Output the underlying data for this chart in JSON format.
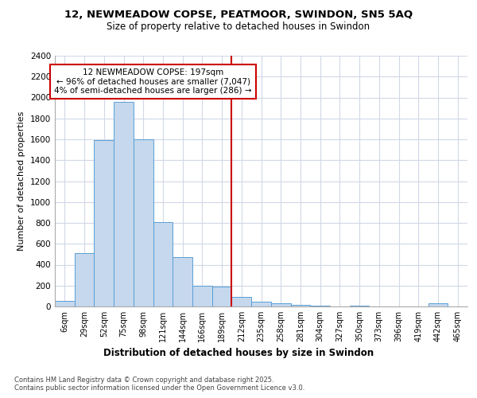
{
  "title1": "12, NEWMEADOW COPSE, PEATMOOR, SWINDON, SN5 5AQ",
  "title2": "Size of property relative to detached houses in Swindon",
  "xlabel": "Distribution of detached houses by size in Swindon",
  "ylabel": "Number of detached properties",
  "bin_labels": [
    "6sqm",
    "29sqm",
    "52sqm",
    "75sqm",
    "98sqm",
    "121sqm",
    "144sqm",
    "166sqm",
    "189sqm",
    "212sqm",
    "235sqm",
    "258sqm",
    "281sqm",
    "304sqm",
    "327sqm",
    "350sqm",
    "373sqm",
    "396sqm",
    "419sqm",
    "442sqm",
    "465sqm"
  ],
  "bar_heights": [
    55,
    510,
    1590,
    1960,
    1600,
    810,
    475,
    200,
    190,
    90,
    45,
    30,
    15,
    5,
    0,
    5,
    0,
    0,
    0,
    30,
    0
  ],
  "bar_color": "#c5d8ed",
  "bar_edge_color": "#5a9fd4",
  "vline_x_index": 8.5,
  "annotation_text": "12 NEWMEADOW COPSE: 197sqm\n← 96% of detached houses are smaller (7,047)\n4% of semi-detached houses are larger (286) →",
  "annotation_box_color": "#ffffff",
  "annotation_box_edge": "#cc0000",
  "vline_color": "#cc0000",
  "grid_color": "#d0d8e8",
  "background_color": "#ffffff",
  "axes_background": "#ffffff",
  "footer_text": "Contains HM Land Registry data © Crown copyright and database right 2025.\nContains public sector information licensed under the Open Government Licence v3.0.",
  "ylim": [
    0,
    2400
  ],
  "yticks": [
    0,
    200,
    400,
    600,
    800,
    1000,
    1200,
    1400,
    1600,
    1800,
    2000,
    2200,
    2400
  ]
}
